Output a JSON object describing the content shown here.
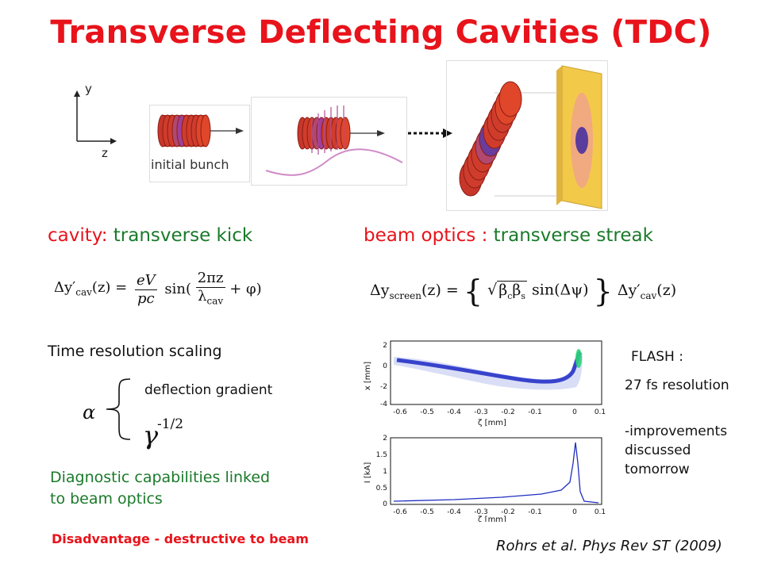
{
  "title": "Transverse Deflecting Cavities (TDC)",
  "axes": {
    "y": "y",
    "z": "z"
  },
  "diagram": {
    "initial_bunch": "initial bunch"
  },
  "cavity": {
    "label": "cavity:",
    "kick": "transverse kick"
  },
  "optics": {
    "label": "beam optics :",
    "streak": "transverse streak"
  },
  "eq1": {
    "lhs": "Δy′cav(z) = ",
    "frac_num": "eV",
    "frac_den": "pc",
    "rest": " sin(2πz/λcav + φ)"
  },
  "eq2": {
    "lhs": "Δyscreen(z) = ",
    "rest": "√(βcβs) sin(Δψ)",
    "tail": "Δy′cav(z)"
  },
  "scaling": {
    "title": "Time resolution scaling",
    "alpha": "α",
    "item1": "deflection gradient",
    "item2": "γ",
    "exponent": "-1/2"
  },
  "diagnostic": {
    "line1": "Diagnostic capabilities linked",
    "line2": "to beam optics"
  },
  "disadvantage": "Disadvantage - destructive to beam",
  "flash": {
    "label": "FLASH :",
    "resolution": "27 fs resolution",
    "improvements_1": "-improvements",
    "improvements_2": "discussed",
    "improvements_3": "tomorrow"
  },
  "reference": "Rohrs et al. Phys Rev ST (2009)",
  "plots": {
    "top": {
      "ylabel": "x [mm]",
      "xlabel": "ζ [mm]",
      "xticks": [
        "-0.6",
        "-0.5",
        "-0.4",
        "-0.3",
        "-0.2",
        "-0.1",
        "0",
        "0.1"
      ],
      "yticks": [
        "2",
        "0",
        "-2",
        "-4"
      ]
    },
    "bottom": {
      "ylabel": "I [kA]",
      "xlabel": "ζ [mm]",
      "xticks": [
        "-0.6",
        "-0.5",
        "-0.4",
        "-0.3",
        "-0.2",
        "-0.1",
        "0",
        "0.1"
      ],
      "yticks": [
        "2",
        "1.5",
        "1",
        "0.5",
        "0"
      ]
    }
  },
  "colors": {
    "title": "#e8131b",
    "green": "#1a7a2a",
    "bunch": "#e0462a",
    "screen": "#f3c94a",
    "profile_line": "#1f2fc0"
  }
}
